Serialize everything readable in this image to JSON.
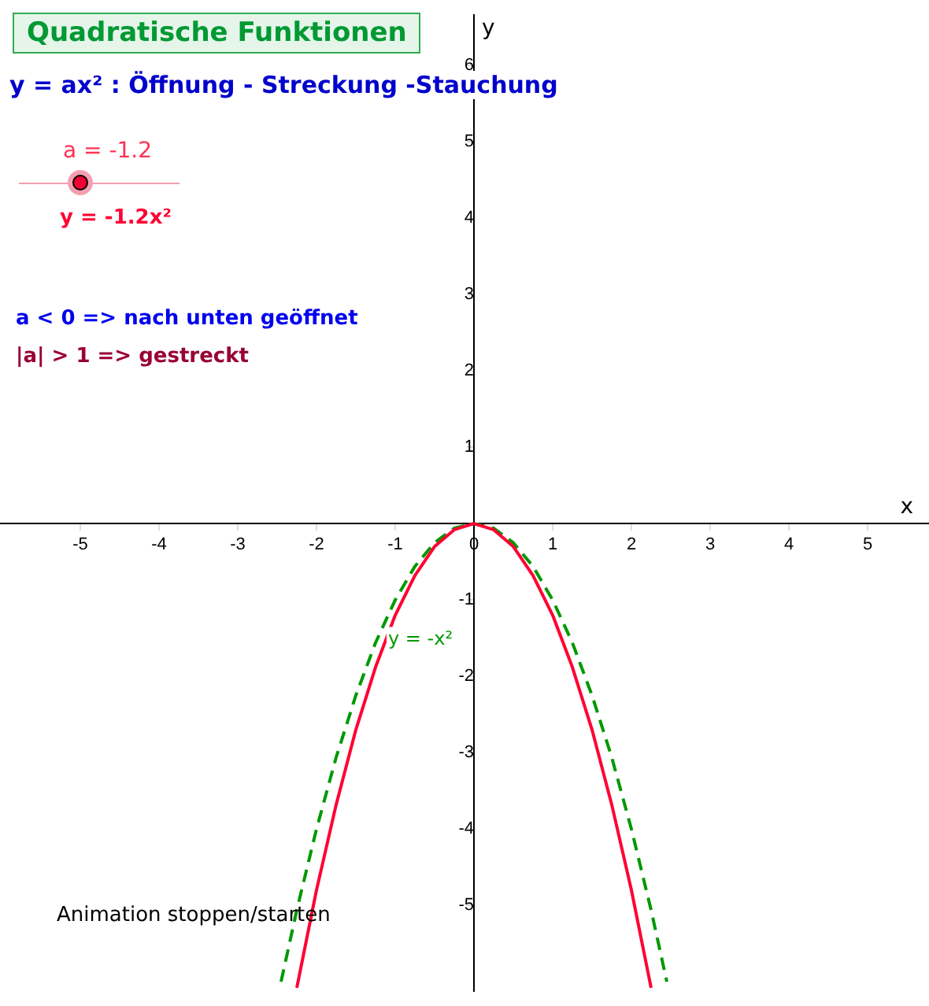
{
  "chart_data": {
    "type": "line",
    "title": "Quadratische Funktionen",
    "subtitle": "y = ax² : Öffnung - Streckung -Stauchung",
    "xlabel": "x",
    "ylabel": "y",
    "xlim": [
      -6.02,
      5.78
    ],
    "ylim": [
      -6.12,
      6.66
    ],
    "xticks": [
      -5,
      -4,
      -3,
      -2,
      -1,
      0,
      1,
      2,
      3,
      4,
      5
    ],
    "yticks": [
      -5,
      -4,
      -3,
      -2,
      -1,
      {
        "value": 0,
        "label": null
      },
      1,
      2,
      3,
      4,
      5,
      6
    ],
    "grid": false,
    "legend": false,
    "marker": "none",
    "series": [
      {
        "name": "y = -1.2x²",
        "color": "#ff0033",
        "line_style": "solid",
        "x": [
          -2.25,
          -2,
          -1.75,
          -1.5,
          -1.25,
          -1,
          -0.75,
          -0.5,
          -0.25,
          0,
          0.25,
          0.5,
          0.75,
          1,
          1.25,
          1.5,
          1.75,
          2,
          2.25
        ],
        "values": [
          -6.08,
          -4.8,
          -3.68,
          -2.7,
          -1.88,
          -1.2,
          -0.68,
          -0.3,
          -0.08,
          0,
          -0.08,
          -0.3,
          -0.68,
          -1.2,
          -1.88,
          -2.7,
          -3.68,
          -4.8,
          -6.08
        ]
      },
      {
        "name": "y = -x²",
        "color": "#009900",
        "line_style": "dashed",
        "x": [
          -2.45,
          -2.25,
          -2,
          -1.75,
          -1.5,
          -1.25,
          -1,
          -0.75,
          -0.5,
          -0.25,
          0,
          0.25,
          0.5,
          0.75,
          1,
          1.25,
          1.5,
          1.75,
          2,
          2.25,
          2.45
        ],
        "values": [
          -6.0,
          -5.06,
          -4,
          -3.06,
          -2.25,
          -1.56,
          -1,
          -0.56,
          -0.25,
          -0.06,
          0,
          -0.06,
          -0.25,
          -0.56,
          -1,
          -1.56,
          -2.25,
          -3.06,
          -4,
          -5.06,
          -6.0
        ]
      }
    ],
    "annotations": [
      "a = -1.2",
      "a < 0  =>  nach unten geöffnet",
      "|a| > 1  =>  gestreckt",
      "Animation stoppen/starten"
    ]
  }
}
